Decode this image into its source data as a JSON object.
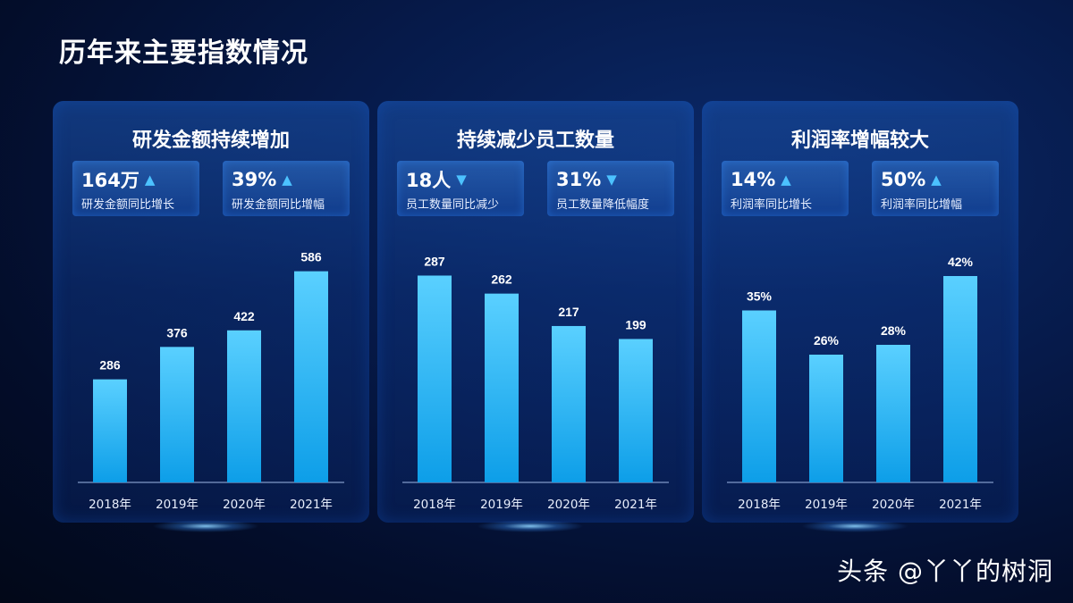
{
  "title": "历年来主要指数情况",
  "colors": {
    "bar_top": "#5ad0ff",
    "bar_bottom": "#0d9ee8",
    "arrow": "#4cc2ff",
    "background": "#061a4a"
  },
  "panels": [
    {
      "title": "研发金额持续增加",
      "stats": [
        {
          "value": "164万",
          "arrow": "▲",
          "label": "研发金额同比增长"
        },
        {
          "value": "39%",
          "arrow": "▲",
          "label": "研发金额同比增幅"
        }
      ]
    },
    {
      "title": "持续减少员工数量",
      "stats": [
        {
          "value": "18人",
          "arrow": "▼",
          "label": "员工数量同比减少"
        },
        {
          "value": "31%",
          "arrow": "▼",
          "label": "员工数量降低幅度"
        }
      ]
    },
    {
      "title": "利润率增幅较大",
      "stats": [
        {
          "value": "14%",
          "arrow": "▲",
          "label": "利润率同比增长"
        },
        {
          "value": "50%",
          "arrow": "▲",
          "label": "利润率同比增幅"
        }
      ]
    }
  ],
  "chart_data": [
    {
      "type": "bar",
      "title": "研发金额持续增加",
      "categories": [
        "2018年",
        "2019年",
        "2020年",
        "2021年"
      ],
      "values": [
        286,
        376,
        422,
        586
      ],
      "value_labels": [
        "286",
        "376",
        "422",
        "586"
      ],
      "ylim": [
        0,
        600
      ]
    },
    {
      "type": "bar",
      "title": "持续减少员工数量",
      "categories": [
        "2018年",
        "2019年",
        "2020年",
        "2021年"
      ],
      "values": [
        287,
        262,
        217,
        199
      ],
      "value_labels": [
        "287",
        "262",
        "217",
        "199"
      ],
      "ylim": [
        0,
        300
      ]
    },
    {
      "type": "bar",
      "title": "利润率增幅较大",
      "categories": [
        "2018年",
        "2019年",
        "2020年",
        "2021年"
      ],
      "values": [
        35,
        26,
        28,
        42
      ],
      "value_labels": [
        "35%",
        "26%",
        "28%",
        "42%"
      ],
      "ylim": [
        0,
        44
      ]
    }
  ],
  "watermark": "头条 @丫丫的树洞"
}
